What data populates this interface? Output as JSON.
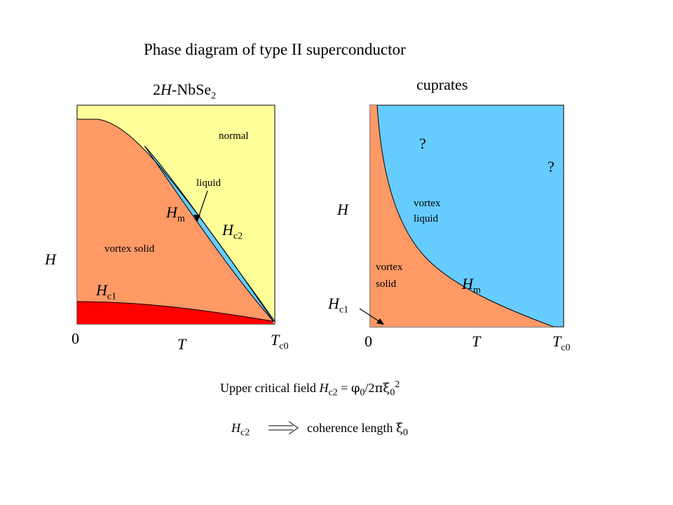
{
  "title": "Phase diagram of type II superconductor",
  "left": {
    "heading_prefix": "2",
    "heading_italic": "H",
    "heading_rest": "-NbSe",
    "heading_sub": "2",
    "regions": {
      "normal": "normal",
      "liquid": "liquid",
      "vortex_solid": "vortex solid"
    },
    "axis": {
      "h": "H",
      "t": "T",
      "zero": "0",
      "tc": "T",
      "tc_sub": "c0"
    },
    "lines": {
      "hm": "H",
      "hm_sub": "m",
      "hc2": "H",
      "hc2_sub": "c2",
      "hc1": "H",
      "hc1_sub": "c1"
    },
    "colors": {
      "normal": "#FFFF99",
      "vortex_solid": "#FF9966",
      "liquid": "#66CCFF",
      "meissner": "#FF0000"
    }
  },
  "right": {
    "heading": "cuprates",
    "regions": {
      "q1": "?",
      "q2": "?",
      "vortex_liquid_1": "vortex",
      "vortex_liquid_2": "liquid",
      "vortex_solid_1": "vortex",
      "vortex_solid_2": "solid"
    },
    "axis": {
      "h": "H",
      "t": "T",
      "zero": "0",
      "tc": "T",
      "tc_sub": "c0"
    },
    "lines": {
      "hm": "H",
      "hm_sub": "m",
      "hc1": "H",
      "hc1_sub": "c1"
    },
    "colors": {
      "vortex_liquid": "#66CCFF",
      "vortex_solid": "#FF9966"
    }
  },
  "formula": {
    "prefix": "Upper critical field ",
    "h": "H",
    "h_sub": "c2",
    "eq": " = ",
    "phi": "φ",
    "phi_sub": "0",
    "div": "/2",
    "pi": "π",
    "xi": "ξ",
    "xi_sub": "0",
    "sup": "2"
  },
  "relation": {
    "h": "H",
    "h_sub": "c2",
    "text": "coherence length ",
    "xi": "ξ",
    "xi_sub": "0"
  }
}
